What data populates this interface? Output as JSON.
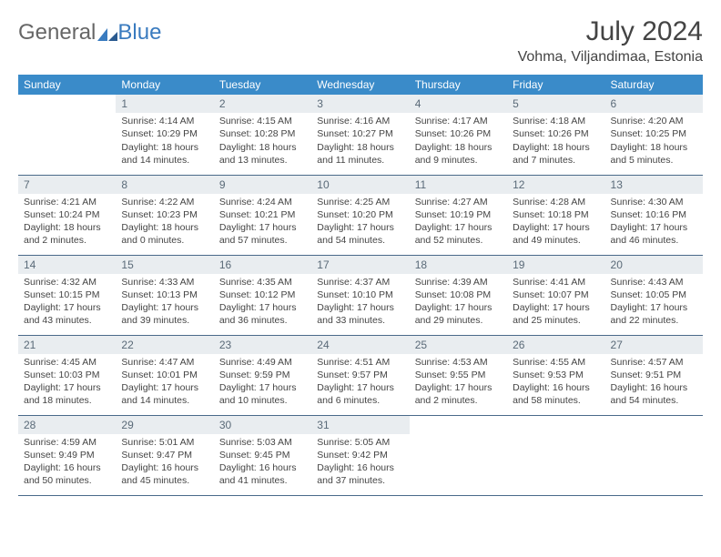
{
  "logo": {
    "text1": "General",
    "text2": "Blue"
  },
  "title": "July 2024",
  "location": "Vohma, Viljandimaa, Estonia",
  "colors": {
    "header_bg": "#3a8bc9",
    "header_text": "#ffffff",
    "daynum_bg": "#e9edf0",
    "daynum_text": "#5a6a78",
    "rule": "#4a6a8a",
    "logo_accent": "#3a7bbf"
  },
  "weekdays": [
    "Sunday",
    "Monday",
    "Tuesday",
    "Wednesday",
    "Thursday",
    "Friday",
    "Saturday"
  ],
  "weeks": [
    [
      {
        "n": "",
        "lines": []
      },
      {
        "n": "1",
        "lines": [
          "Sunrise: 4:14 AM",
          "Sunset: 10:29 PM",
          "Daylight: 18 hours",
          "and 14 minutes."
        ]
      },
      {
        "n": "2",
        "lines": [
          "Sunrise: 4:15 AM",
          "Sunset: 10:28 PM",
          "Daylight: 18 hours",
          "and 13 minutes."
        ]
      },
      {
        "n": "3",
        "lines": [
          "Sunrise: 4:16 AM",
          "Sunset: 10:27 PM",
          "Daylight: 18 hours",
          "and 11 minutes."
        ]
      },
      {
        "n": "4",
        "lines": [
          "Sunrise: 4:17 AM",
          "Sunset: 10:26 PM",
          "Daylight: 18 hours",
          "and 9 minutes."
        ]
      },
      {
        "n": "5",
        "lines": [
          "Sunrise: 4:18 AM",
          "Sunset: 10:26 PM",
          "Daylight: 18 hours",
          "and 7 minutes."
        ]
      },
      {
        "n": "6",
        "lines": [
          "Sunrise: 4:20 AM",
          "Sunset: 10:25 PM",
          "Daylight: 18 hours",
          "and 5 minutes."
        ]
      }
    ],
    [
      {
        "n": "7",
        "lines": [
          "Sunrise: 4:21 AM",
          "Sunset: 10:24 PM",
          "Daylight: 18 hours",
          "and 2 minutes."
        ]
      },
      {
        "n": "8",
        "lines": [
          "Sunrise: 4:22 AM",
          "Sunset: 10:23 PM",
          "Daylight: 18 hours",
          "and 0 minutes."
        ]
      },
      {
        "n": "9",
        "lines": [
          "Sunrise: 4:24 AM",
          "Sunset: 10:21 PM",
          "Daylight: 17 hours",
          "and 57 minutes."
        ]
      },
      {
        "n": "10",
        "lines": [
          "Sunrise: 4:25 AM",
          "Sunset: 10:20 PM",
          "Daylight: 17 hours",
          "and 54 minutes."
        ]
      },
      {
        "n": "11",
        "lines": [
          "Sunrise: 4:27 AM",
          "Sunset: 10:19 PM",
          "Daylight: 17 hours",
          "and 52 minutes."
        ]
      },
      {
        "n": "12",
        "lines": [
          "Sunrise: 4:28 AM",
          "Sunset: 10:18 PM",
          "Daylight: 17 hours",
          "and 49 minutes."
        ]
      },
      {
        "n": "13",
        "lines": [
          "Sunrise: 4:30 AM",
          "Sunset: 10:16 PM",
          "Daylight: 17 hours",
          "and 46 minutes."
        ]
      }
    ],
    [
      {
        "n": "14",
        "lines": [
          "Sunrise: 4:32 AM",
          "Sunset: 10:15 PM",
          "Daylight: 17 hours",
          "and 43 minutes."
        ]
      },
      {
        "n": "15",
        "lines": [
          "Sunrise: 4:33 AM",
          "Sunset: 10:13 PM",
          "Daylight: 17 hours",
          "and 39 minutes."
        ]
      },
      {
        "n": "16",
        "lines": [
          "Sunrise: 4:35 AM",
          "Sunset: 10:12 PM",
          "Daylight: 17 hours",
          "and 36 minutes."
        ]
      },
      {
        "n": "17",
        "lines": [
          "Sunrise: 4:37 AM",
          "Sunset: 10:10 PM",
          "Daylight: 17 hours",
          "and 33 minutes."
        ]
      },
      {
        "n": "18",
        "lines": [
          "Sunrise: 4:39 AM",
          "Sunset: 10:08 PM",
          "Daylight: 17 hours",
          "and 29 minutes."
        ]
      },
      {
        "n": "19",
        "lines": [
          "Sunrise: 4:41 AM",
          "Sunset: 10:07 PM",
          "Daylight: 17 hours",
          "and 25 minutes."
        ]
      },
      {
        "n": "20",
        "lines": [
          "Sunrise: 4:43 AM",
          "Sunset: 10:05 PM",
          "Daylight: 17 hours",
          "and 22 minutes."
        ]
      }
    ],
    [
      {
        "n": "21",
        "lines": [
          "Sunrise: 4:45 AM",
          "Sunset: 10:03 PM",
          "Daylight: 17 hours",
          "and 18 minutes."
        ]
      },
      {
        "n": "22",
        "lines": [
          "Sunrise: 4:47 AM",
          "Sunset: 10:01 PM",
          "Daylight: 17 hours",
          "and 14 minutes."
        ]
      },
      {
        "n": "23",
        "lines": [
          "Sunrise: 4:49 AM",
          "Sunset: 9:59 PM",
          "Daylight: 17 hours",
          "and 10 minutes."
        ]
      },
      {
        "n": "24",
        "lines": [
          "Sunrise: 4:51 AM",
          "Sunset: 9:57 PM",
          "Daylight: 17 hours",
          "and 6 minutes."
        ]
      },
      {
        "n": "25",
        "lines": [
          "Sunrise: 4:53 AM",
          "Sunset: 9:55 PM",
          "Daylight: 17 hours",
          "and 2 minutes."
        ]
      },
      {
        "n": "26",
        "lines": [
          "Sunrise: 4:55 AM",
          "Sunset: 9:53 PM",
          "Daylight: 16 hours",
          "and 58 minutes."
        ]
      },
      {
        "n": "27",
        "lines": [
          "Sunrise: 4:57 AM",
          "Sunset: 9:51 PM",
          "Daylight: 16 hours",
          "and 54 minutes."
        ]
      }
    ],
    [
      {
        "n": "28",
        "lines": [
          "Sunrise: 4:59 AM",
          "Sunset: 9:49 PM",
          "Daylight: 16 hours",
          "and 50 minutes."
        ]
      },
      {
        "n": "29",
        "lines": [
          "Sunrise: 5:01 AM",
          "Sunset: 9:47 PM",
          "Daylight: 16 hours",
          "and 45 minutes."
        ]
      },
      {
        "n": "30",
        "lines": [
          "Sunrise: 5:03 AM",
          "Sunset: 9:45 PM",
          "Daylight: 16 hours",
          "and 41 minutes."
        ]
      },
      {
        "n": "31",
        "lines": [
          "Sunrise: 5:05 AM",
          "Sunset: 9:42 PM",
          "Daylight: 16 hours",
          "and 37 minutes."
        ]
      },
      {
        "n": "",
        "lines": []
      },
      {
        "n": "",
        "lines": []
      },
      {
        "n": "",
        "lines": []
      }
    ]
  ]
}
